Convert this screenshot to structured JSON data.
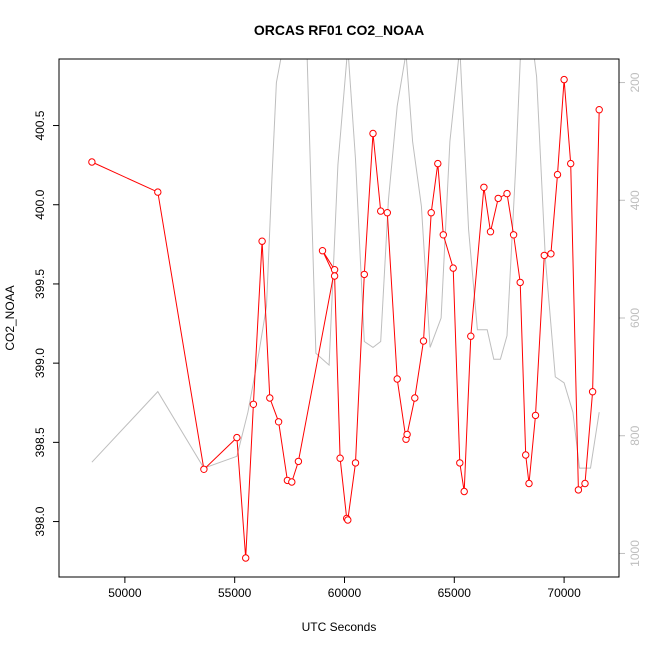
{
  "chart_data": {
    "type": "line",
    "title": "ORCAS RF01 CO2_NOAA",
    "xlabel": "UTC Seconds",
    "ylabel": "CO2_NOAA",
    "xlim": [
      47000,
      72500
    ],
    "ylim": [
      397.65,
      400.92
    ],
    "xticks": [
      50000,
      55000,
      60000,
      65000,
      70000
    ],
    "xtick_labels": [
      "50000",
      "55000",
      "60000",
      "65000",
      "70000"
    ],
    "yticks": [
      398.0,
      398.5,
      399.0,
      399.5,
      400.0,
      400.5
    ],
    "ytick_labels": [
      "398.0",
      "398.5",
      "399.0",
      "399.5",
      "400.0",
      "400.5"
    ],
    "y2lim": [
      1040,
      160
    ],
    "y2ticks": [
      200,
      400,
      600,
      800,
      1000
    ],
    "y2tick_labels": [
      "200",
      "400",
      "600",
      "800",
      "1000"
    ],
    "grid": false,
    "colors": {
      "primary": "#ff0000",
      "secondary": "#bebebe",
      "axis": "#000000",
      "secondary_axis_text": "#bebebe"
    },
    "series": [
      {
        "role": "primary",
        "axis": "left",
        "marker": "open-circle",
        "x": [
          48500,
          51500,
          53600,
          55100,
          55500,
          55850,
          56250,
          56600,
          57000,
          57400,
          57600,
          57900,
          59550,
          59000,
          59550,
          59800,
          60100,
          60150,
          60500,
          60900,
          61300,
          61650,
          61950,
          62400,
          62800,
          62850,
          63200,
          63600,
          63950,
          64250,
          64500,
          64950,
          65250,
          65450,
          65750,
          66350,
          66650,
          67000,
          67400,
          67700,
          68000,
          68250,
          68400,
          68700,
          69100,
          69400,
          69700,
          70000,
          70300,
          70650,
          70950,
          71300,
          71600
        ],
        "y": [
          400.27,
          400.08,
          398.33,
          398.53,
          397.77,
          398.74,
          399.77,
          398.78,
          398.63,
          398.26,
          398.25,
          398.38,
          399.59,
          399.71,
          399.55,
          398.4,
          398.02,
          398.01,
          398.37,
          399.56,
          400.45,
          399.96,
          399.95,
          398.9,
          398.52,
          398.55,
          398.78,
          399.14,
          399.95,
          400.26,
          399.81,
          399.6,
          398.37,
          398.19,
          399.17,
          400.11,
          399.83,
          400.04,
          400.07,
          399.81,
          399.51,
          398.42,
          398.24,
          398.67,
          399.68,
          399.69,
          400.19,
          400.79,
          400.26,
          398.2,
          398.24,
          398.82,
          400.6
        ]
      },
      {
        "role": "secondary",
        "axis": "right",
        "marker": "none",
        "x": [
          48500,
          51500,
          53600,
          55100,
          55600,
          56100,
          56450,
          56700,
          56900,
          57200,
          57800,
          58300,
          58700,
          59000,
          59300,
          59700,
          60150,
          60500,
          60900,
          61300,
          61650,
          62000,
          62400,
          62800,
          63100,
          63500,
          63900,
          64100,
          64400,
          64800,
          65250,
          65650,
          66050,
          66500,
          66800,
          67100,
          67400,
          67800,
          68050,
          68450,
          68750,
          69150,
          69600,
          70000,
          70400,
          70700,
          71200,
          71600
        ],
        "y": [
          845,
          725,
          855,
          835,
          760,
          660,
          580,
          360,
          200,
          140,
          100,
          160,
          660,
          670,
          680,
          340,
          140,
          330,
          640,
          650,
          640,
          400,
          240,
          150,
          300,
          410,
          650,
          630,
          600,
          300,
          140,
          450,
          620,
          620,
          670,
          670,
          630,
          340,
          120,
          100,
          190,
          500,
          700,
          710,
          760,
          855,
          855,
          760
        ]
      }
    ]
  }
}
